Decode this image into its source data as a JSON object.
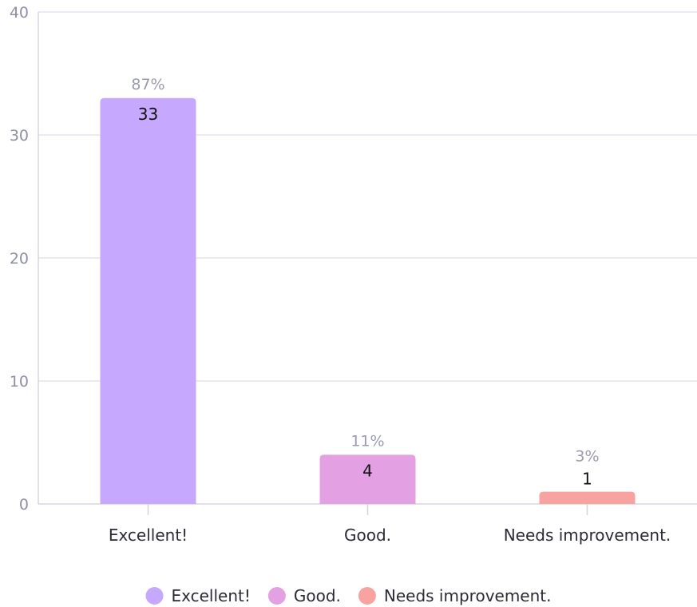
{
  "chart_data": {
    "type": "bar",
    "title": "",
    "xlabel": "",
    "ylabel": "",
    "categories": [
      "Excellent!",
      "Good.",
      "Needs improvement."
    ],
    "values": [
      33,
      4,
      1
    ],
    "percent_labels": [
      "87%",
      "11%",
      "3%"
    ],
    "colors": [
      "#c6a8ff",
      "#e3a0e3",
      "#f9a3a0"
    ],
    "ylim": [
      0,
      40
    ],
    "yticks": [
      0,
      10,
      20,
      30,
      40
    ],
    "grid": true,
    "legend": {
      "placement": "bottom-center",
      "entries": [
        "Excellent!",
        "Good.",
        "Needs improvement."
      ]
    }
  }
}
